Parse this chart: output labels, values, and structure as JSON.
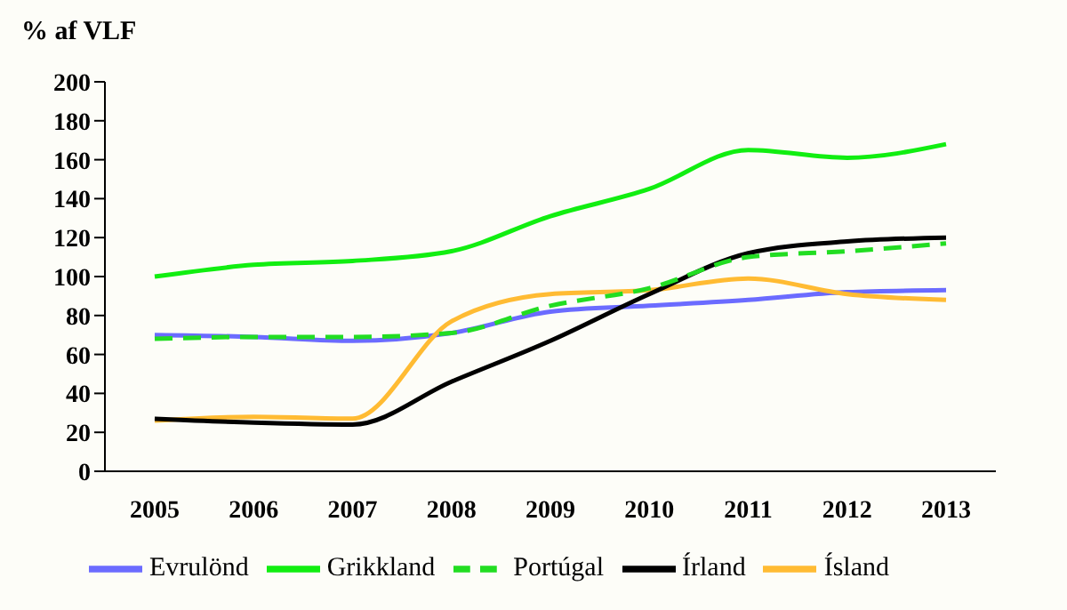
{
  "chart_data": {
    "type": "line",
    "ylabel": "% af VLF",
    "categories": [
      "2005",
      "2006",
      "2007",
      "2008",
      "2009",
      "2010",
      "2011",
      "2012",
      "2013"
    ],
    "series": [
      {
        "name": "Evrulönd",
        "color": "#6b6bff",
        "values": [
          70,
          69,
          67,
          71,
          82,
          85,
          88,
          92,
          93
        ]
      },
      {
        "name": "Ísland",
        "color": "#ffbb33",
        "values": [
          26,
          28,
          27,
          77,
          91,
          93,
          99,
          91,
          88
        ]
      },
      {
        "name": "Írland",
        "color": "#000000",
        "values": [
          27,
          25,
          24,
          46,
          67,
          91,
          112,
          118,
          120
        ]
      },
      {
        "name": "Portúgal",
        "color": "#22dd22",
        "line_style": "dashed",
        "values": [
          68,
          69,
          69,
          71,
          85,
          94,
          110,
          113,
          117
        ]
      },
      {
        "name": "Grikkland",
        "color": "#11ee11",
        "values": [
          100,
          106,
          108,
          113,
          131,
          145,
          165,
          161,
          168
        ]
      }
    ],
    "ylim": [
      0,
      200
    ],
    "yticks": [
      0,
      20,
      40,
      60,
      80,
      100,
      120,
      140,
      160,
      180,
      200
    ],
    "grid": false,
    "legend": "bottom",
    "marker": "none",
    "line_style": "solid"
  }
}
